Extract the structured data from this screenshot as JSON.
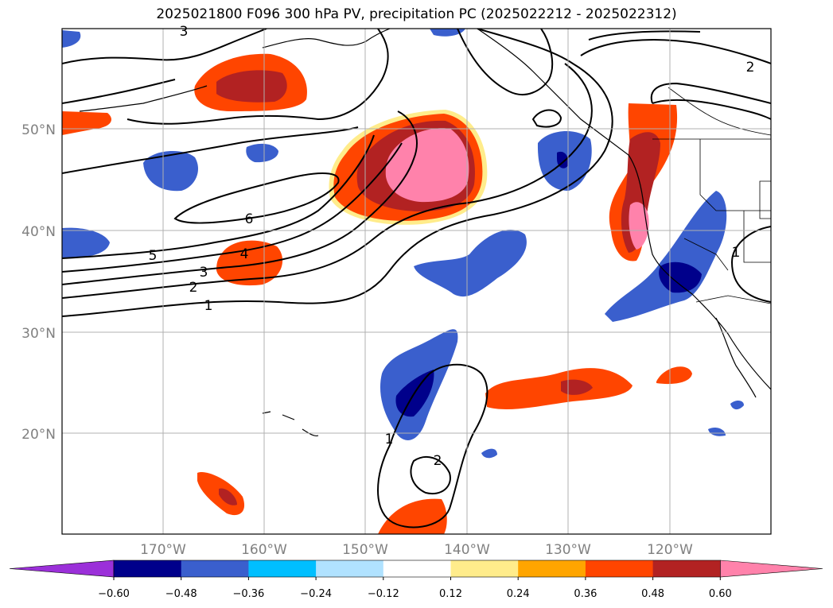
{
  "title": "2025021800 F096 300 hPa PV, precipitation PC (2025022212 - 2025022312)",
  "lat_ticks": [
    "50°N",
    "40°N",
    "30°N",
    "20°N"
  ],
  "lon_ticks": [
    "170°W",
    "160°W",
    "150°W",
    "140°W",
    "130°W",
    "120°W"
  ],
  "contour_labels": [
    "6",
    "5",
    "4",
    "3",
    "2",
    "1",
    "1",
    "2",
    "2",
    "1",
    "3"
  ],
  "colorbar": {
    "ticks": [
      "−0.60",
      "−0.48",
      "−0.36",
      "−0.24",
      "−0.12",
      "0.12",
      "0.24",
      "0.36",
      "0.48",
      "0.60"
    ],
    "colors": [
      "#9b30d9",
      "#00008b",
      "#3a5fcd",
      "#00bfff",
      "#b0e2ff",
      "#ffffff",
      "#ffec8b",
      "#ffa500",
      "#ff4500",
      "#b22222",
      "#ff82ab"
    ]
  },
  "colors": {
    "neg_deep": "#00008b",
    "neg_mid": "#3a5fcd",
    "neg_light": "#00bfff",
    "pos_light": "#ffec8b",
    "pos_orange": "#ffa500",
    "pos_red": "#ff4500",
    "pos_dark": "#b22222",
    "pos_pink": "#ff82ab"
  }
}
